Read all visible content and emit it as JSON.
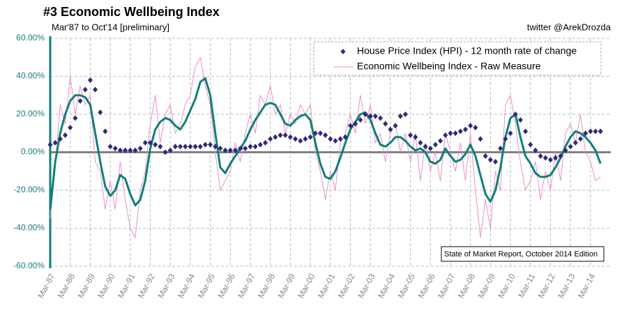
{
  "chart_data": {
    "type": "line",
    "title": "#3 Economic Wellbeing Index",
    "subtitle": "Mar'87 to Oct'14 [preliminary]",
    "source": "twitter @ArekDrozda",
    "annotation": "State of Market Report, October 2014 Edition",
    "legend": "upper right",
    "grid": true,
    "x": [
      "Mar-87",
      "Jun-87",
      "Sep-87",
      "Dec-87",
      "Mar-88",
      "Jun-88",
      "Sep-88",
      "Dec-88",
      "Mar-89",
      "Jun-89",
      "Sep-89",
      "Dec-89",
      "Mar-90",
      "Jun-90",
      "Sep-90",
      "Dec-90",
      "Mar-91",
      "Jun-91",
      "Sep-91",
      "Dec-91",
      "Mar-92",
      "Jun-92",
      "Sep-92",
      "Dec-92",
      "Mar-93",
      "Jun-93",
      "Sep-93",
      "Dec-93",
      "Mar-94",
      "Jun-94",
      "Sep-94",
      "Dec-94",
      "Mar-95",
      "Jun-95",
      "Sep-95",
      "Dec-95",
      "Mar-96",
      "Jun-96",
      "Sep-96",
      "Dec-96",
      "Mar-97",
      "Jun-97",
      "Sep-97",
      "Dec-97",
      "Mar-98",
      "Jun-98",
      "Sep-98",
      "Dec-98",
      "Mar-99",
      "Jun-99",
      "Sep-99",
      "Dec-99",
      "Mar-00",
      "Jun-00",
      "Sep-00",
      "Dec-00",
      "Mar-01",
      "Jun-01",
      "Sep-01",
      "Dec-01",
      "Mar-02",
      "Jun-02",
      "Sep-02",
      "Dec-02",
      "Mar-03",
      "Jun-03",
      "Sep-03",
      "Dec-03",
      "Mar-04",
      "Jun-04",
      "Sep-04",
      "Dec-04",
      "Mar-05",
      "Jun-05",
      "Sep-05",
      "Dec-05",
      "Mar-06",
      "Jun-06",
      "Sep-06",
      "Dec-06",
      "Mar-07",
      "Jun-07",
      "Sep-07",
      "Dec-07",
      "Mar-08",
      "Jun-08",
      "Sep-08",
      "Dec-08",
      "Mar-09",
      "Jun-09",
      "Sep-09",
      "Dec-09",
      "Mar-10",
      "Jun-10",
      "Sep-10",
      "Dec-10",
      "Mar-11",
      "Jun-11",
      "Sep-11",
      "Dec-11",
      "Mar-12",
      "Jun-12",
      "Sep-12",
      "Dec-12",
      "Mar-13",
      "Jun-13",
      "Sep-13",
      "Dec-13",
      "Mar-14",
      "Jun-14",
      "Sep-14"
    ],
    "xticks": [
      "Mar-87",
      "Mar-88",
      "Mar-89",
      "Mar-90",
      "Mar-91",
      "Mar-92",
      "Mar-93",
      "Mar-94",
      "Mar-95",
      "Mar-96",
      "Mar-97",
      "Mar-98",
      "Mar-99",
      "Mar-00",
      "Mar-01",
      "Mar-02",
      "Mar-03",
      "Mar-04",
      "Mar-05",
      "Mar-06",
      "Mar-07",
      "Mar-08",
      "Mar-09",
      "Mar-10",
      "Mar-11",
      "Mar-12",
      "Mar-13",
      "Mar-14"
    ],
    "ylim": [
      -60,
      60
    ],
    "yticks": [
      {
        "value": -60,
        "label": "-60.00%"
      },
      {
        "value": -40,
        "label": "-40.00%"
      },
      {
        "value": -20,
        "label": "-20.00%"
      },
      {
        "value": 0,
        "label": "0.00%"
      },
      {
        "value": 20,
        "label": "20.00%"
      },
      {
        "value": 40,
        "label": "40.00%"
      },
      {
        "value": 60,
        "label": "60.00%"
      }
    ],
    "series": [
      {
        "name": "Economic Wellbeing Index - Raw Measure",
        "type": "line",
        "color": "#e98fcb",
        "width": 1,
        "values": [
          -35,
          -8,
          25,
          15,
          40,
          20,
          35,
          25,
          30,
          -5,
          -10,
          -30,
          -15,
          -30,
          -5,
          -25,
          -40,
          -45,
          -20,
          -10,
          15,
          30,
          5,
          20,
          25,
          10,
          15,
          25,
          30,
          45,
          50,
          35,
          25,
          0,
          -20,
          -15,
          -10,
          5,
          -5,
          10,
          20,
          10,
          30,
          25,
          35,
          20,
          25,
          10,
          20,
          15,
          25,
          20,
          25,
          0,
          -10,
          -25,
          -10,
          -20,
          5,
          10,
          20,
          10,
          30,
          15,
          25,
          5,
          10,
          -5,
          10,
          15,
          0,
          10,
          -5,
          10,
          -15,
          5,
          -10,
          0,
          -15,
          10,
          0,
          -10,
          5,
          -15,
          10,
          -20,
          -45,
          -25,
          -40,
          -10,
          -20,
          25,
          30,
          15,
          -5,
          -20,
          -15,
          -5,
          -25,
          -10,
          -20,
          0,
          -15,
          10,
          15,
          5,
          20,
          0,
          -5,
          -15,
          -13
        ]
      },
      {
        "type": "line",
        "color": "#0e8078",
        "width": 3,
        "values": [
          -30,
          -5,
          10,
          20,
          27,
          30,
          30,
          29,
          25,
          10,
          -5,
          -18,
          -23,
          -20,
          -12,
          -14,
          -22,
          -28,
          -25,
          -15,
          2,
          12,
          16,
          18,
          17,
          14,
          12,
          16,
          22,
          28,
          37,
          39,
          30,
          10,
          -8,
          -11,
          -6,
          -2,
          2,
          6,
          12,
          17,
          21,
          25,
          26,
          25,
          20,
          15,
          14,
          17,
          19,
          20,
          17,
          5,
          -6,
          -13,
          -14,
          -10,
          -3,
          5,
          12,
          16,
          20,
          21,
          17,
          10,
          4,
          3,
          5,
          8,
          8,
          6,
          3,
          1,
          2,
          0,
          -5,
          -6,
          -4,
          2,
          -2,
          -5,
          -4,
          -1,
          4,
          -2,
          -12,
          -22,
          -26,
          -20,
          -8,
          8,
          18,
          20,
          8,
          -2,
          -6,
          -11,
          -13,
          -13,
          -12,
          -8,
          -3,
          3,
          8,
          11,
          10,
          8,
          5,
          1,
          -6
        ]
      },
      {
        "name": "House Price Index (HPI) - 12 month rate of change",
        "type": "scatter",
        "color": "#2f2a78",
        "values": [
          4,
          5,
          7,
          9,
          13,
          18,
          27,
          33,
          38,
          33,
          21,
          11,
          3,
          2,
          1,
          1,
          1,
          1,
          2,
          5,
          5,
          4,
          3,
          0,
          1,
          3,
          3,
          3,
          3,
          3,
          3,
          4,
          4,
          3,
          2,
          1,
          1,
          1,
          2,
          2,
          3,
          3,
          4,
          5,
          7,
          8,
          9,
          9,
          8,
          7,
          6,
          7,
          8,
          10,
          10,
          9,
          7,
          6,
          7,
          8,
          14,
          15,
          17,
          20,
          19,
          19,
          18,
          15,
          12,
          14,
          19,
          20,
          9,
          8,
          5,
          3,
          2,
          4,
          6,
          9,
          10,
          10,
          11,
          12,
          14,
          13,
          7,
          -2,
          -4,
          -5,
          2,
          7,
          10,
          20,
          17,
          11,
          4,
          1,
          -2,
          -3,
          -4,
          -3,
          -2,
          1,
          3,
          5,
          7,
          10,
          11,
          11,
          11
        ]
      }
    ]
  }
}
